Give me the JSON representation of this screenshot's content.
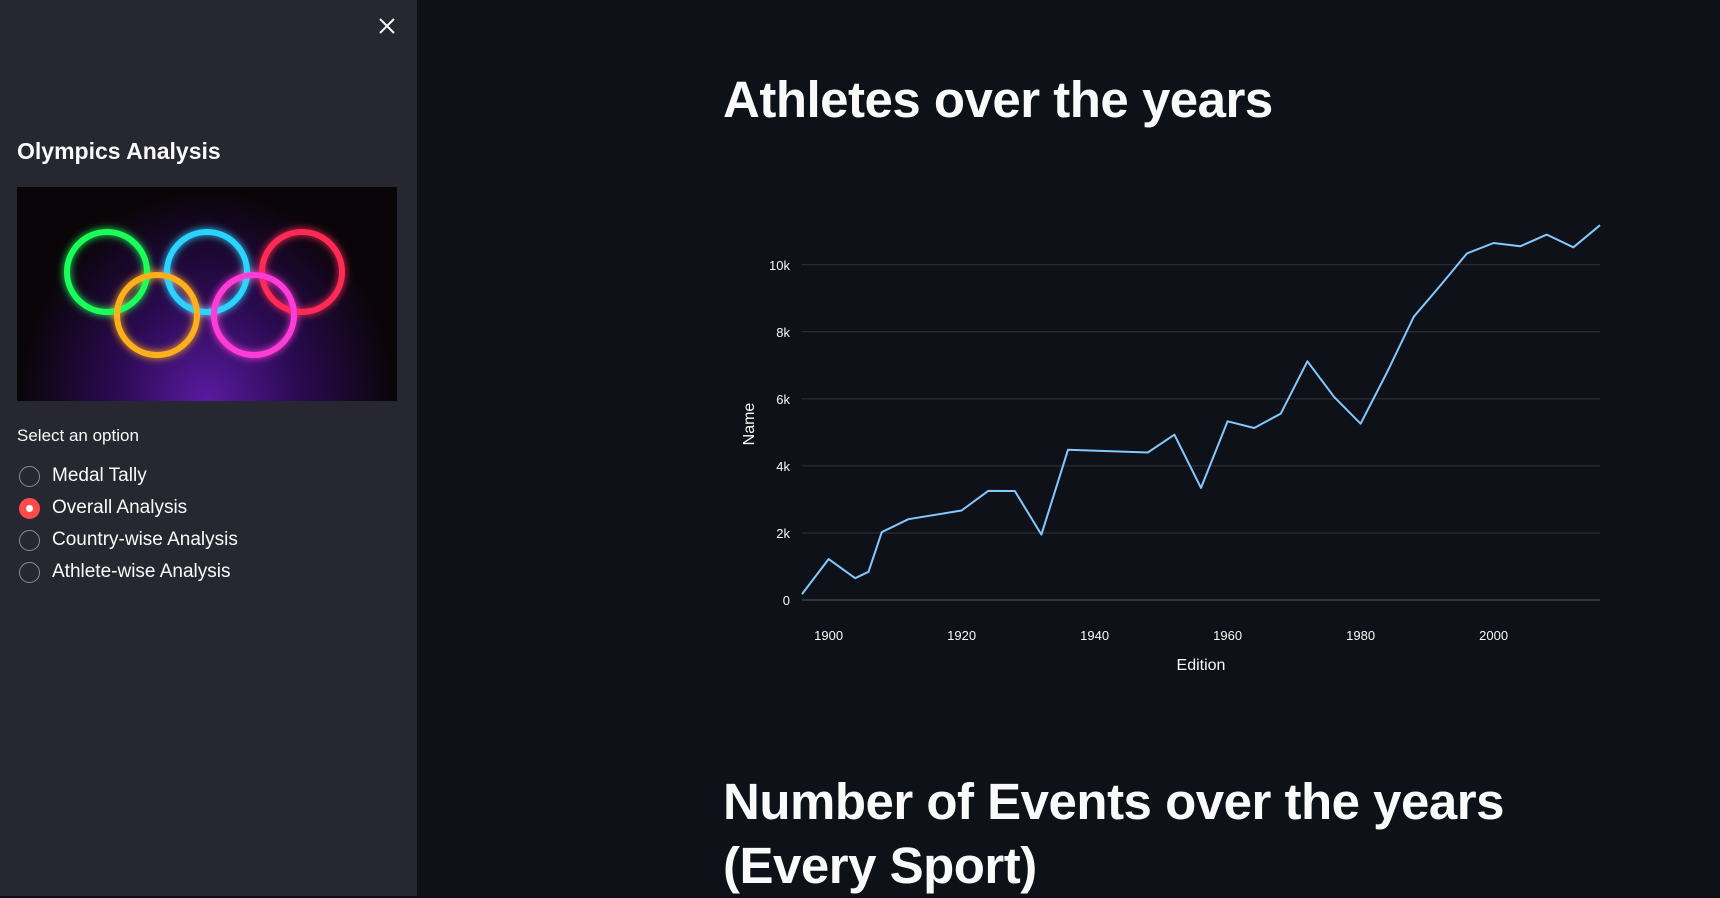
{
  "sidebar": {
    "title": "Olympics Analysis",
    "image_alt": "olympic-rings-image",
    "select_label": "Select an option",
    "options": [
      {
        "label": "Medal Tally",
        "checked": false
      },
      {
        "label": "Overall Analysis",
        "checked": true
      },
      {
        "label": "Country-wise Analysis",
        "checked": false
      },
      {
        "label": "Athlete-wise Analysis",
        "checked": false
      }
    ]
  },
  "main": {
    "heading1": "Athletes over the years",
    "heading2": "Number of Events over the years (Every Sport)"
  },
  "colors": {
    "accent": "#ff4b4b",
    "line": "#83c9ff",
    "background": "#0e1117",
    "sidebar": "#262730"
  },
  "chart_data": {
    "type": "line",
    "xlabel": "Edition",
    "ylabel": "Name",
    "xlim": [
      1896,
      2016
    ],
    "ylim": [
      0,
      10500
    ],
    "x_ticks": [
      1900,
      1920,
      1940,
      1960,
      1980,
      2000
    ],
    "y_ticks": [
      {
        "value": 0,
        "label": "0"
      },
      {
        "value": 2000,
        "label": "2k"
      },
      {
        "value": 4000,
        "label": "4k"
      },
      {
        "value": 6000,
        "label": "6k"
      },
      {
        "value": 8000,
        "label": "8k"
      },
      {
        "value": 10000,
        "label": "10k"
      }
    ],
    "grid": true,
    "series": [
      {
        "x": [
          1896,
          1900,
          1904,
          1906,
          1908,
          1912,
          1920,
          1924,
          1928,
          1932,
          1936,
          1948,
          1952,
          1956,
          1960,
          1964,
          1968,
          1972,
          1976,
          1980,
          1984,
          1988,
          1992,
          1996,
          2000,
          2004,
          2008,
          2012,
          2016
        ],
        "y": [
          176,
          1220,
          650,
          840,
          2024,
          2410,
          2670,
          3255,
          3250,
          1950,
          4480,
          4400,
          4930,
          3345,
          5330,
          5130,
          5560,
          7120,
          6060,
          5260,
          6800,
          8450,
          9380,
          10340,
          10650,
          10550,
          10900,
          10520,
          11180
        ]
      }
    ]
  }
}
